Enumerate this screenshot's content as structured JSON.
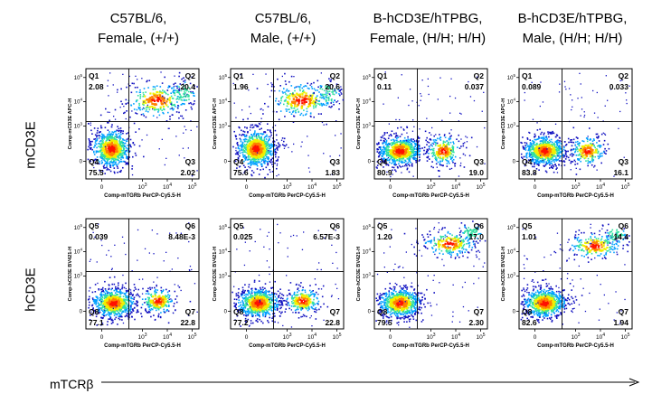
{
  "column_headers": [
    {
      "line1": "C57BL/6,",
      "line2": "Female,  (+/+)"
    },
    {
      "line1": "C57BL/6,",
      "line2": "Male,  (+/+)"
    },
    {
      "line1": "B-hCD3E/hTPBG,",
      "line2": "Female, (H/H; H/H)"
    },
    {
      "line1": "B-hCD3E/hTPBG,",
      "line2": "Male, (H/H; H/H)"
    }
  ],
  "row_labels": [
    "mCD3E",
    "hCD3E"
  ],
  "x_title": "mTCRβ",
  "axis": {
    "x_label": "Comp-mTGRb PerCP-Cy5.5-H",
    "y_labels": [
      "Comp-mCD3E APC-H",
      "Comp-hCD3E BV421-H"
    ],
    "x_ticks": [
      "0",
      "10",
      "10",
      "10"
    ],
    "x_tick_exp": [
      "",
      "3",
      "4",
      "5"
    ],
    "y_ticks": [
      "0",
      "10",
      "10",
      "10"
    ],
    "y_tick_exp": [
      "",
      "3",
      "4",
      "5"
    ]
  },
  "chart_data": {
    "type": "scatter",
    "plot_kind": "flow cytometry density dot plot with quadrant gates",
    "x_axis": "Comp-mTGRb PerCP-Cy5.5-H",
    "x_scale": "biexponential (log)",
    "y_scale": "biexponential (log)",
    "panels": [
      {
        "row": "mCD3E",
        "column": "C57BL/6, Female,  (+/+)",
        "q_labels": [
          "Q1",
          "Q2",
          "Q3",
          "Q4"
        ],
        "q_values": [
          "2.08",
          "20.4",
          "2.02",
          "75.5"
        ]
      },
      {
        "row": "mCD3E",
        "column": "C57BL/6, Male,  (+/+)",
        "q_labels": [
          "Q1",
          "Q2",
          "Q3",
          "Q4"
        ],
        "q_values": [
          "1.96",
          "20.6",
          "1.83",
          "75.6"
        ]
      },
      {
        "row": "mCD3E",
        "column": "B-hCD3E/hTPBG, Female, (H/H; H/H)",
        "q_labels": [
          "Q1",
          "Q2",
          "Q3",
          "Q4"
        ],
        "q_values": [
          "0.11",
          "0.037",
          "19.0",
          "80.9"
        ]
      },
      {
        "row": "mCD3E",
        "column": "B-hCD3E/hTPBG, Male, (H/H; H/H)",
        "q_labels": [
          "Q1",
          "Q2",
          "Q3",
          "Q4"
        ],
        "q_values": [
          "0.089",
          "0.033",
          "16.1",
          "83.8"
        ]
      },
      {
        "row": "hCD3E",
        "column": "C57BL/6, Female,  (+/+)",
        "q_labels": [
          "Q5",
          "Q6",
          "Q7",
          "Q8"
        ],
        "q_values": [
          "0.039",
          "8.48E-3",
          "22.8",
          "77.1"
        ]
      },
      {
        "row": "hCD3E",
        "column": "C57BL/6, Male,  (+/+)",
        "q_labels": [
          "Q5",
          "Q6",
          "Q7",
          "Q8"
        ],
        "q_values": [
          "0.025",
          "6.57E-3",
          "22.8",
          "77.2"
        ]
      },
      {
        "row": "hCD3E",
        "column": "B-hCD3E/hTPBG, Female, (H/H; H/H)",
        "q_labels": [
          "Q5",
          "Q6",
          "Q7",
          "Q8"
        ],
        "q_values": [
          "1.20",
          "17.0",
          "2.30",
          "79.5"
        ]
      },
      {
        "row": "hCD3E",
        "column": "B-hCD3E/hTPBG, Male, (H/H; H/H)",
        "q_labels": [
          "Q5",
          "Q6",
          "Q7",
          "Q8"
        ],
        "q_values": [
          "1.01",
          "14.4",
          "1.94",
          "82.6"
        ]
      }
    ],
    "density_colors": [
      "#1010c0",
      "#00a0ff",
      "#30e0a0",
      "#f0f000",
      "#ff8000",
      "#ff1000"
    ]
  }
}
